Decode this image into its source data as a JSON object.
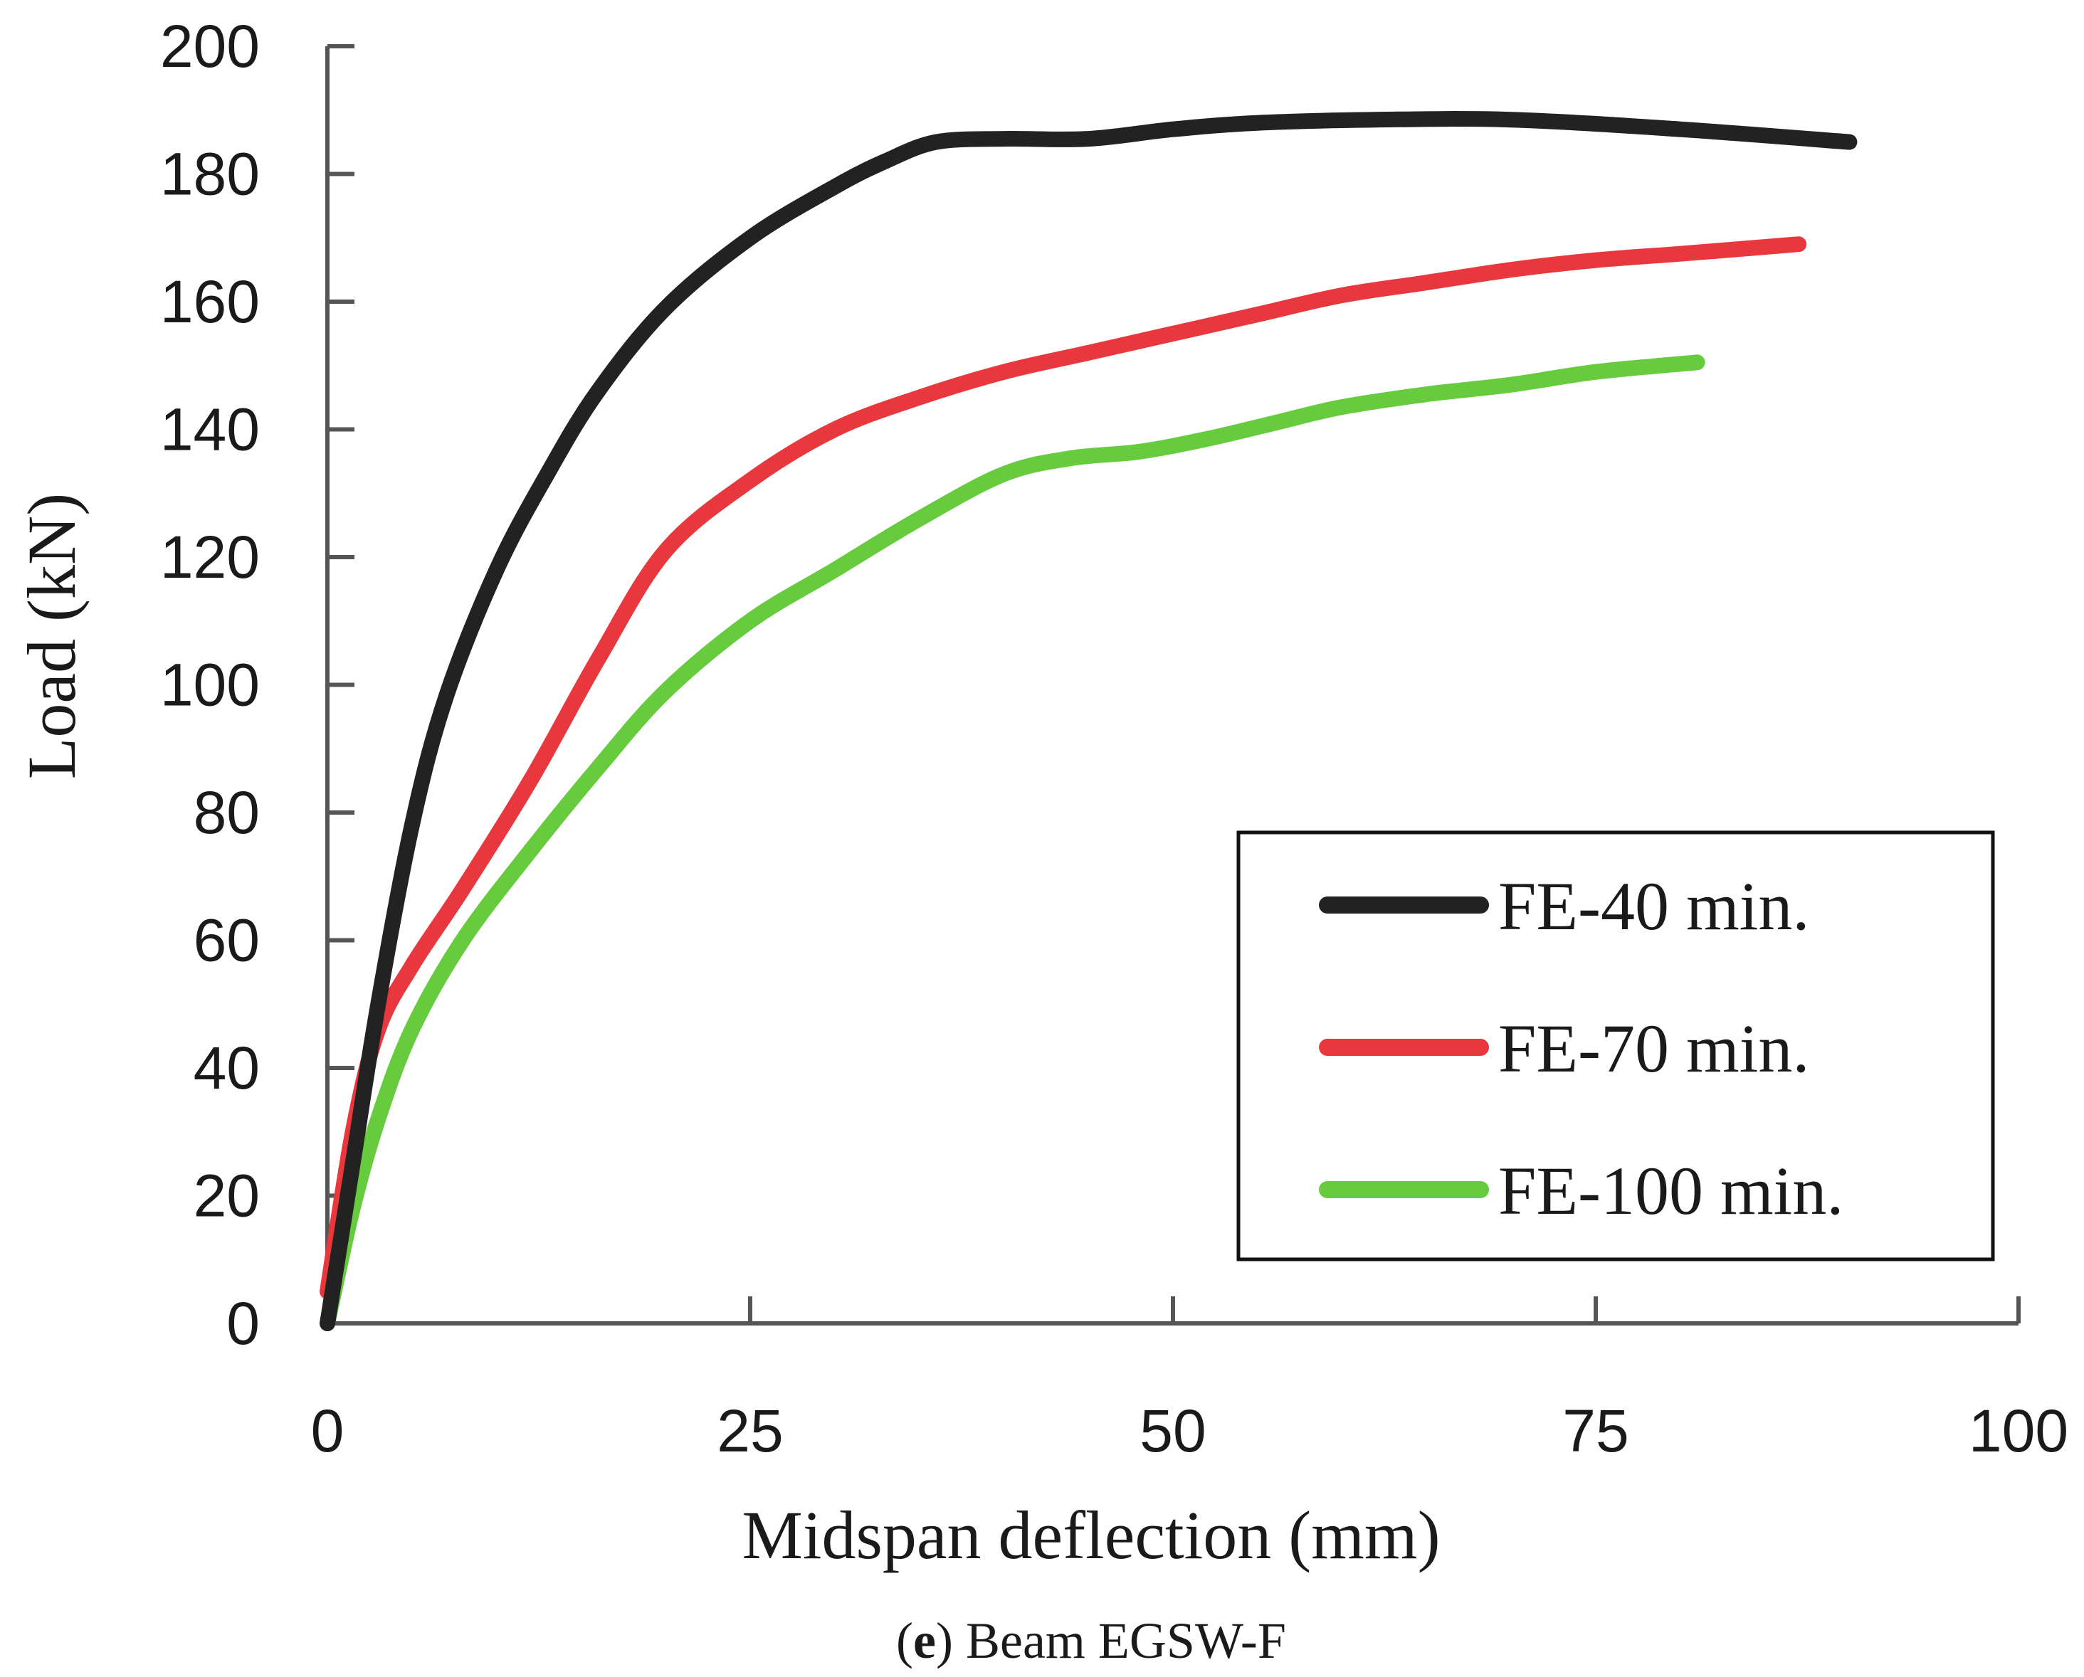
{
  "chart_data": {
    "type": "line",
    "title": "",
    "xlabel": "Midspan deflection (mm)",
    "ylabel": "Load (kN)",
    "xlim": [
      0,
      100
    ],
    "ylim": [
      0,
      200
    ],
    "x_ticks": [
      0,
      25,
      50,
      75,
      100
    ],
    "y_ticks": [
      0,
      20,
      40,
      60,
      80,
      100,
      120,
      140,
      160,
      180,
      200
    ],
    "x_tick_labels": [
      "0",
      "25",
      "50",
      "75",
      "100"
    ],
    "y_tick_labels": [
      "0",
      "20",
      "40",
      "60",
      "80",
      "100",
      "120",
      "140",
      "160",
      "180",
      "200"
    ],
    "grid": false,
    "legend_position": "bottom-right",
    "series": [
      {
        "name": "FE-40 min.",
        "color": "#222222",
        "x": [
          0,
          1.5,
          3,
          5,
          7,
          10,
          13,
          16,
          20,
          25,
          30,
          33,
          36,
          40,
          45,
          50,
          55,
          62,
          70,
          80,
          90
        ],
        "y": [
          0,
          25,
          50,
          78,
          98,
          118,
          133,
          146,
          159,
          170,
          178,
          182,
          185,
          185.5,
          185.5,
          187,
          188,
          188.5,
          188.5,
          187,
          185
        ]
      },
      {
        "name": "FE-70 min.",
        "color": "#e8383d",
        "x": [
          0,
          1.5,
          3,
          5,
          8,
          12,
          16,
          20,
          25,
          30,
          35,
          40,
          45,
          50,
          55,
          60,
          65,
          70,
          75,
          80,
          87
        ],
        "y": [
          5,
          30,
          46,
          56,
          68,
          85,
          104,
          121,
          132,
          140,
          145,
          149,
          152,
          155,
          158,
          161,
          163,
          165,
          166.5,
          167.5,
          169
        ]
      },
      {
        "name": "FE-100 min.",
        "color": "#66cc3e",
        "x": [
          0,
          1.5,
          3,
          5,
          8,
          12,
          16,
          20,
          25,
          30,
          35,
          40,
          44,
          48,
          52,
          56,
          60,
          65,
          70,
          75,
          81
        ],
        "y": [
          0,
          18,
          32,
          46,
          60,
          74,
          87,
          99,
          110,
          118,
          126,
          133,
          135.5,
          136.5,
          138.5,
          141,
          143.5,
          145.5,
          147,
          149,
          150.5
        ]
      }
    ],
    "caption": {
      "label": "e",
      "open_paren": "(",
      "close_paren": ")",
      "text": " Beam EGSW-F"
    }
  }
}
